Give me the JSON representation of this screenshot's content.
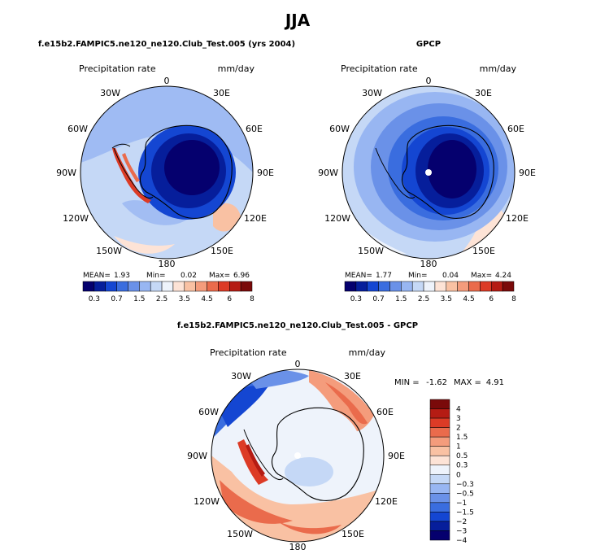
{
  "chart_data": {
    "type": "heatmap",
    "title": "JJA",
    "colors": {
      "land_outline": "#000000",
      "scale_main": [
        "#05006e",
        "#061e9b",
        "#1446d2",
        "#3a6ddf",
        "#6a91e8",
        "#98b6f2",
        "#c5d8f6",
        "#eef3fb",
        "#fde3d6",
        "#f9c1a3",
        "#f49c7c",
        "#ea6b4c",
        "#dc3b26",
        "#b51c14",
        "#7a0a0a"
      ],
      "scale_diff": [
        "#05006e",
        "#061e9b",
        "#1446d2",
        "#3a6ddf",
        "#6a91e8",
        "#98b6f2",
        "#c5d8f6",
        "#eef3fb",
        "#fde3d6",
        "#f9c1a3",
        "#f49c7c",
        "#ea6b4c",
        "#dc3b26",
        "#b51c14",
        "#7a0a0a"
      ]
    },
    "panels": [
      {
        "title": "f.e15b2.FAMPIC5.ne120_ne120.Club_Test.005 (yrs 2004)",
        "variable": "Precipitation rate",
        "units": "mm/day",
        "projection": "polar stereographic, south pole",
        "lon_labels": [
          "0",
          "30E",
          "60E",
          "90E",
          "120E",
          "150E",
          "180",
          "150W",
          "120W",
          "90W",
          "60W",
          "30W"
        ],
        "stats": {
          "mean_label": "MEAN=",
          "mean": "1.93",
          "min_label": "Min=",
          "min": "0.02",
          "max_label": "Max=",
          "max": "6.96"
        },
        "colorbar_levels": [
          0.3,
          0.5,
          0.7,
          1,
          1.5,
          2,
          2.5,
          3,
          3.5,
          4,
          4.5,
          5,
          6,
          7,
          8
        ],
        "colorbar_tick_labels": [
          "0.3",
          "0.7",
          "1.5",
          "2.5",
          "3.5",
          "4.5",
          "6",
          "8"
        ]
      },
      {
        "title": "GPCP",
        "variable": "Precipitation rate",
        "units": "mm/day",
        "projection": "polar stereographic, south pole",
        "lon_labels": [
          "0",
          "30E",
          "60E",
          "90E",
          "120E",
          "150E",
          "180",
          "150W",
          "120W",
          "90W",
          "60W",
          "30W"
        ],
        "stats": {
          "mean_label": "MEAN=",
          "mean": "1.77",
          "min_label": "Min=",
          "min": "0.04",
          "max_label": "Max=",
          "max": "4.24"
        },
        "colorbar_levels": [
          0.3,
          0.5,
          0.7,
          1,
          1.5,
          2,
          2.5,
          3,
          3.5,
          4,
          4.5,
          5,
          6,
          7,
          8
        ],
        "colorbar_tick_labels": [
          "0.3",
          "0.7",
          "1.5",
          "2.5",
          "3.5",
          "4.5",
          "6",
          "8"
        ]
      },
      {
        "title": "f.e15b2.FAMPIC5.ne120_ne120.Club_Test.005 - GPCP",
        "variable": "Precipitation rate",
        "units": "mm/day",
        "projection": "polar stereographic, south pole",
        "lon_labels": [
          "0",
          "30E",
          "60E",
          "90E",
          "120E",
          "150E",
          "180",
          "150W",
          "120W",
          "90W",
          "60W",
          "30W"
        ],
        "stats": {
          "min_label": "MIN =",
          "min": "-1.62",
          "max_label": "MAX =",
          "max": "4.91"
        },
        "colorbar_levels": [
          -4,
          -3,
          -2,
          -1.5,
          -1,
          -0.5,
          -0.3,
          0,
          0.3,
          0.5,
          1,
          1.5,
          2,
          3,
          4
        ],
        "colorbar_tick_labels": [
          "4",
          "3",
          "2",
          "1.5",
          "1",
          "0.5",
          "0.3",
          "0",
          "−0.3",
          "−0.5",
          "−1",
          "−1.5",
          "−2",
          "−3",
          "−4"
        ]
      }
    ]
  }
}
